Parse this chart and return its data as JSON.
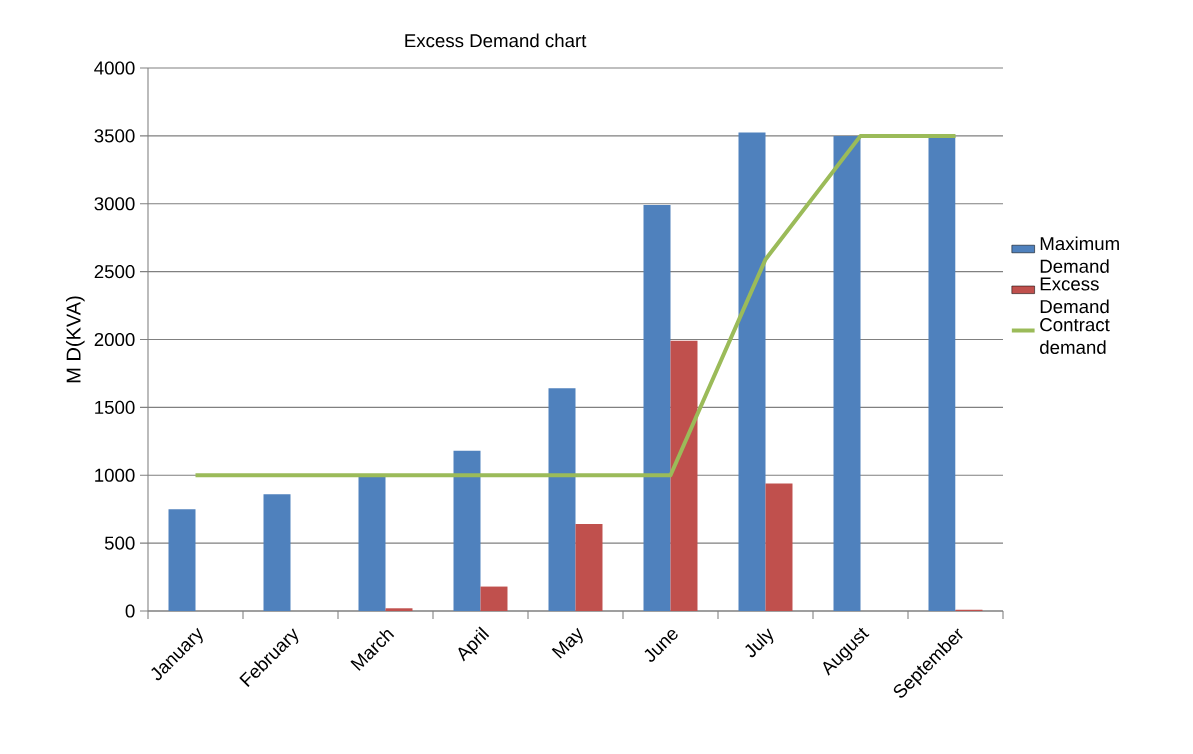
{
  "chart_data": {
    "type": "bar",
    "title": "Excess Demand chart",
    "ylabel": "M D(KVA)",
    "categories": [
      "January",
      "February",
      "March",
      "April",
      "May",
      "June",
      "July",
      "August",
      "September"
    ],
    "series": [
      {
        "name": "Maximum Demand",
        "color": "#4f81bd",
        "values": [
          750,
          860,
          990,
          1180,
          1640,
          2990,
          3525,
          3500,
          3500
        ]
      },
      {
        "name": "Excess Demand",
        "color": "#c0504d",
        "values": [
          0,
          0,
          20,
          180,
          640,
          1990,
          940,
          0,
          10
        ]
      },
      {
        "name": "Contract demand",
        "type": "line",
        "color": "#9bbb59",
        "values": [
          1000,
          1000,
          1000,
          1000,
          1000,
          1000,
          2590,
          3500,
          3500
        ]
      }
    ],
    "ylim": [
      0,
      4000
    ],
    "yticks": [
      0,
      500,
      1000,
      1500,
      2000,
      2500,
      3000,
      3500,
      4000
    ],
    "grid": "y",
    "legend": "right"
  }
}
